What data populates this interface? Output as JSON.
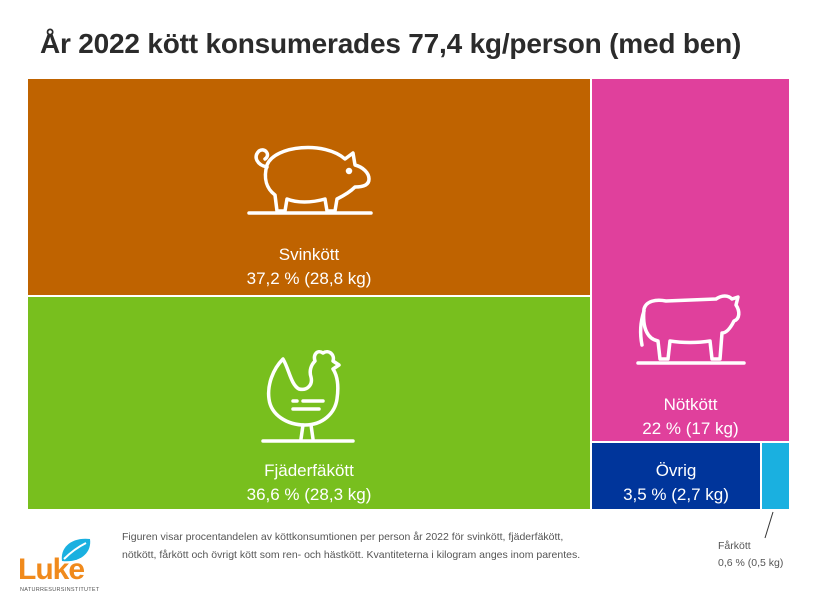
{
  "title": "År 2022 kött konsumerades 77,4 kg/person (med ben)",
  "footnote": "Figuren visar procentandelen av köttkonsumtionen per person år 2022 för svinkött, fjäderfäkött, nötkött, fårkött och övrigt kött som ren- och hästkött. Kvantiteterna i kilogram anges inom parentes.",
  "logo": {
    "word": "Luke",
    "sub": "NATURRESURSINSTITUTET"
  },
  "colors": {
    "svin": "#bf6300",
    "fjader": "#78bf1e",
    "not": "#e0409c",
    "ovrig": "#00359b",
    "far": "#1ab0e0"
  },
  "chart_data": {
    "type": "treemap",
    "title": "År 2022 kött konsumerades 77,4 kg/person (med ben)",
    "total_kg": 77.4,
    "items": [
      {
        "name": "Svinkött",
        "percent": 37.2,
        "kg": 28.8,
        "label": "37,2 % (28,8 kg)",
        "icon": "pig-icon"
      },
      {
        "name": "Fjäderfäkött",
        "percent": 36.6,
        "kg": 28.3,
        "label": "36,6 % (28,3 kg)",
        "icon": "chicken-icon"
      },
      {
        "name": "Nötkött",
        "percent": 22,
        "kg": 17,
        "label": "22 % (17 kg)",
        "icon": "cow-icon"
      },
      {
        "name": "Övrig",
        "percent": 3.5,
        "kg": 2.7,
        "label": "3,5 % (2,7 kg)"
      },
      {
        "name": "Fårkött",
        "percent": 0.6,
        "kg": 0.5,
        "label": "0,6 % (0,5 kg)"
      }
    ]
  }
}
